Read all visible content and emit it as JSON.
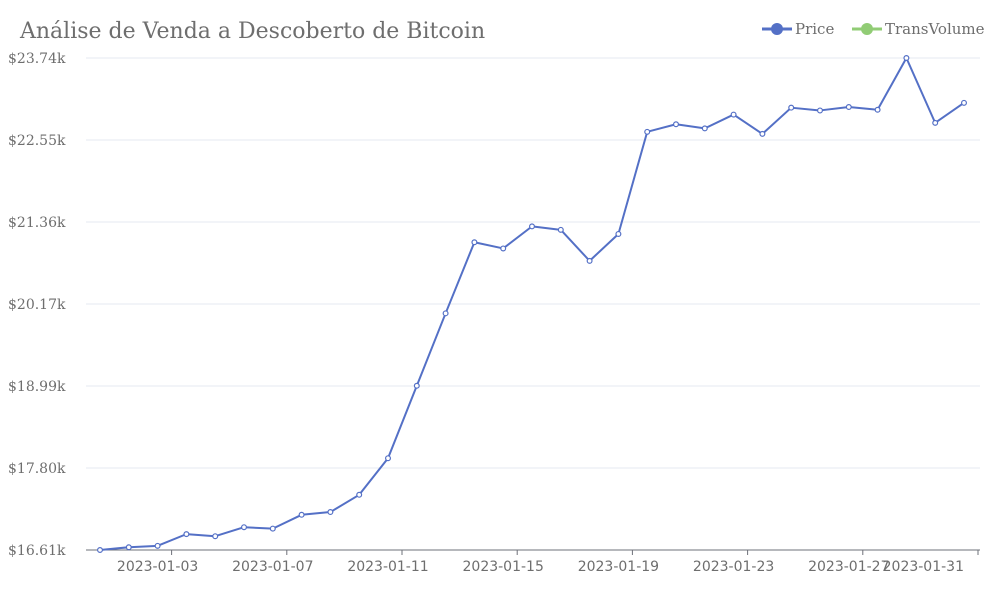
{
  "chart_data": {
    "type": "line",
    "title": "Análise de Venda a Descoberto de Bitcoin",
    "legend_position": "top-right",
    "legend": [
      {
        "name": "Price",
        "color": "#5470c6"
      },
      {
        "name": "TransVolume",
        "color": "#91cc75"
      }
    ],
    "x": [
      "2023-01-01",
      "2023-01-02",
      "2023-01-03",
      "2023-01-04",
      "2023-01-05",
      "2023-01-06",
      "2023-01-07",
      "2023-01-08",
      "2023-01-09",
      "2023-01-10",
      "2023-01-11",
      "2023-01-12",
      "2023-01-13",
      "2023-01-14",
      "2023-01-15",
      "2023-01-16",
      "2023-01-17",
      "2023-01-18",
      "2023-01-19",
      "2023-01-20",
      "2023-01-21",
      "2023-01-22",
      "2023-01-23",
      "2023-01-24",
      "2023-01-25",
      "2023-01-26",
      "2023-01-27",
      "2023-01-28",
      "2023-01-29",
      "2023-01-30",
      "2023-01-31"
    ],
    "x_tick_labels": [
      "2023-01-03",
      "2023-01-07",
      "2023-01-11",
      "2023-01-15",
      "2023-01-19",
      "2023-01-23",
      "2023-01-27",
      "2023-01-31"
    ],
    "y_tick_labels": [
      "$16.61k",
      "$17.80k",
      "$18.99k",
      "$20.17k",
      "$21.36k",
      "$22.55k",
      "$23.74k"
    ],
    "ylim": [
      16.61,
      23.74
    ],
    "y_unit": "thousand USD",
    "grid": true,
    "series": [
      {
        "name": "Price",
        "color": "#5470c6",
        "values": [
          16.61,
          16.65,
          16.67,
          16.84,
          16.81,
          16.94,
          16.92,
          17.12,
          17.16,
          17.41,
          17.94,
          18.99,
          20.04,
          21.07,
          20.98,
          21.3,
          21.25,
          20.8,
          21.19,
          22.67,
          22.78,
          22.72,
          22.92,
          22.64,
          23.02,
          22.98,
          23.03,
          22.99,
          23.74,
          22.8,
          23.09
        ]
      }
    ]
  }
}
